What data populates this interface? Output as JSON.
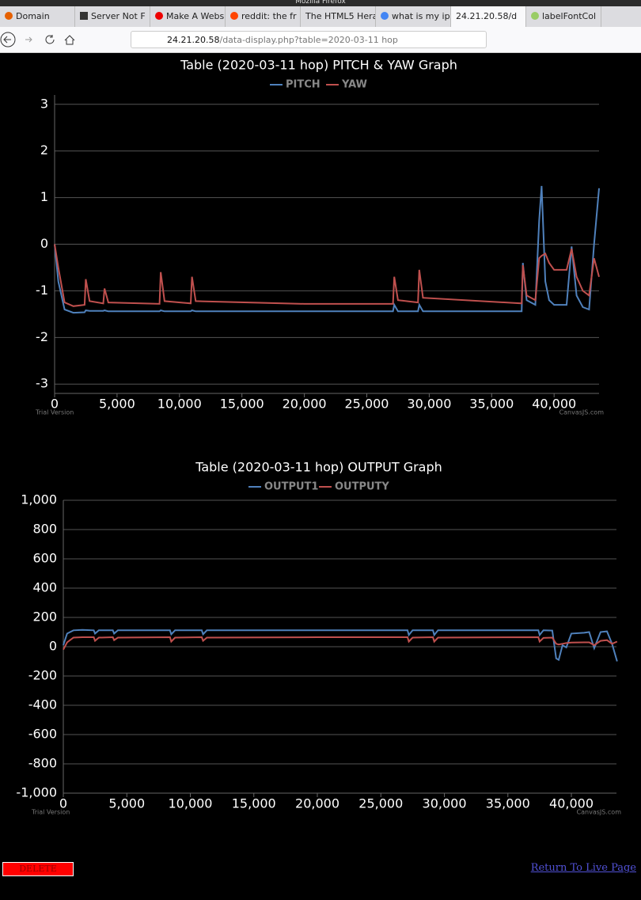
{
  "browser": {
    "window_title": "Mozilla Firefox",
    "tabs": [
      "Domain",
      "Server Not F",
      "Make A Webs",
      "reddit: the fr",
      "The HTML5 Hera",
      "what is my ip",
      "24.21.20.58/d",
      "labelFontCol"
    ],
    "url_host": "24.21.20.58",
    "url_path": "/data-display.php?table=2020-03-11 hop"
  },
  "chart_data": [
    {
      "type": "line",
      "title": "Table (2020-03-11 hop) PITCH & YAW Graph",
      "watermark_left": "Trial Version",
      "watermark_right": "CanvasJS.com",
      "x": [
        0,
        300,
        800,
        1500,
        2400,
        2500,
        2800,
        3900,
        4000,
        4300,
        8400,
        8500,
        8800,
        10900,
        11000,
        11300,
        20000,
        27100,
        27200,
        27500,
        29100,
        29200,
        29500,
        37400,
        37500,
        37800,
        38500,
        38800,
        39000,
        39300,
        39600,
        40000,
        41000,
        41400,
        41800,
        42300,
        42800,
        43200,
        43600
      ],
      "series": [
        {
          "name": "PITCH",
          "color": "#4f81bc",
          "values": [
            0,
            -0.8,
            -1.4,
            -1.47,
            -1.46,
            -1.42,
            -1.43,
            -1.43,
            -1.42,
            -1.44,
            -1.44,
            -1.42,
            -1.44,
            -1.44,
            -1.42,
            -1.44,
            -1.44,
            -1.44,
            -1.3,
            -1.44,
            -1.44,
            -1.3,
            -1.44,
            -1.44,
            -0.4,
            -1.2,
            -1.3,
            0.5,
            1.25,
            -0.8,
            -1.2,
            -1.3,
            -1.3,
            -0.05,
            -1.1,
            -1.35,
            -1.4,
            0,
            1.2
          ]
        },
        {
          "name": "YAW",
          "color": "#c0504e",
          "values": [
            0,
            -0.5,
            -1.25,
            -1.33,
            -1.3,
            -0.75,
            -1.22,
            -1.27,
            -0.95,
            -1.25,
            -1.28,
            -0.6,
            -1.22,
            -1.27,
            -0.7,
            -1.22,
            -1.28,
            -1.28,
            -0.7,
            -1.2,
            -1.25,
            -0.55,
            -1.15,
            -1.27,
            -0.45,
            -1.1,
            -1.2,
            -0.3,
            -0.25,
            -0.2,
            -0.4,
            -0.55,
            -0.55,
            -0.1,
            -0.7,
            -1,
            -1.1,
            -0.3,
            -0.7
          ]
        }
      ],
      "xlim": [
        0,
        43600
      ],
      "xticks": [
        0,
        {
          "value": 5000,
          "label": "5,000"
        },
        {
          "value": 10000,
          "label": "10,000"
        },
        {
          "value": 15000,
          "label": "15,000"
        },
        {
          "value": 20000,
          "label": "20,000"
        },
        {
          "value": 25000,
          "label": "25,000"
        },
        {
          "value": 30000,
          "label": "30,000"
        },
        {
          "value": 35000,
          "label": "35,000"
        },
        {
          "value": 40000,
          "label": "40,000"
        }
      ],
      "ylim": [
        -3.2,
        3.2
      ],
      "yticks": [
        -3,
        -2,
        -1,
        0,
        1,
        2,
        3
      ],
      "grid": true
    },
    {
      "type": "line",
      "title": "Table (2020-03-11 hop) OUTPUT Graph",
      "watermark_left": "Trial Version",
      "watermark_right": "CanvasJS.com",
      "x": [
        0,
        300,
        800,
        1500,
        2400,
        2500,
        2800,
        3900,
        4000,
        4300,
        8400,
        8500,
        8800,
        10900,
        11000,
        11300,
        20000,
        27100,
        27200,
        27500,
        29100,
        29200,
        29500,
        37400,
        37500,
        37800,
        38500,
        38800,
        39000,
        39300,
        39600,
        40000,
        41000,
        41400,
        41800,
        42300,
        42800,
        43200,
        43600
      ],
      "series": [
        {
          "name": "OUTPUT1",
          "color": "#4f81bc",
          "values": [
            10,
            90,
            112,
            115,
            112,
            90,
            112,
            112,
            90,
            112,
            112,
            85,
            112,
            112,
            85,
            112,
            112,
            112,
            80,
            112,
            112,
            80,
            112,
            112,
            80,
            112,
            110,
            -80,
            -90,
            10,
            -5,
            90,
            95,
            100,
            -10,
            100,
            105,
            20,
            -100
          ]
        },
        {
          "name": "OUTPUTY",
          "color": "#c0504e",
          "values": [
            -20,
            30,
            62,
            65,
            65,
            40,
            62,
            65,
            45,
            62,
            65,
            35,
            62,
            65,
            40,
            62,
            65,
            65,
            35,
            62,
            65,
            35,
            62,
            65,
            35,
            60,
            62,
            20,
            15,
            20,
            25,
            28,
            30,
            30,
            10,
            40,
            45,
            20,
            35
          ]
        }
      ],
      "xlim": [
        0,
        43550
      ],
      "xticks": [
        0,
        {
          "value": 5000,
          "label": "5,000"
        },
        {
          "value": 10000,
          "label": "10,000"
        },
        {
          "value": 15000,
          "label": "15,000"
        },
        {
          "value": 20000,
          "label": "20,000"
        },
        {
          "value": 25000,
          "label": "25,000"
        },
        {
          "value": 30000,
          "label": "30,000"
        },
        {
          "value": 35000,
          "label": "35,000"
        },
        {
          "value": 40000,
          "label": "40,000"
        }
      ],
      "ylim": [
        -1000,
        1000
      ],
      "yticks": [
        {
          "value": -1000,
          "label": "-1,000"
        },
        -800,
        -600,
        -400,
        -200,
        0,
        200,
        400,
        600,
        800,
        {
          "value": 1000,
          "label": "1,000"
        }
      ],
      "grid": true
    }
  ],
  "controls": {
    "delete_button": "DELETE TABLE",
    "return_link": "Return To Live Page"
  }
}
